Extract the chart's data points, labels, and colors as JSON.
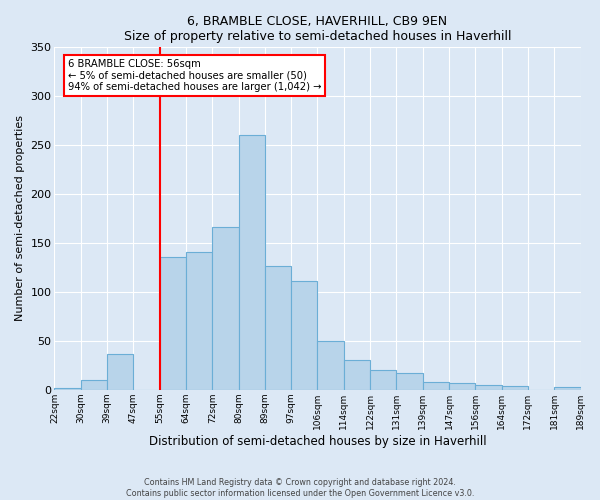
{
  "title": "6, BRAMBLE CLOSE, HAVERHILL, CB9 9EN",
  "subtitle": "Size of property relative to semi-detached houses in Haverhill",
  "xlabel": "Distribution of semi-detached houses by size in Haverhill",
  "ylabel": "Number of semi-detached properties",
  "footer_line1": "Contains HM Land Registry data © Crown copyright and database right 2024.",
  "footer_line2": "Contains public sector information licensed under the Open Government Licence v3.0.",
  "bin_labels": [
    "22sqm",
    "30sqm",
    "39sqm",
    "47sqm",
    "55sqm",
    "64sqm",
    "72sqm",
    "80sqm",
    "89sqm",
    "97sqm",
    "106sqm",
    "114sqm",
    "122sqm",
    "131sqm",
    "139sqm",
    "147sqm",
    "156sqm",
    "164sqm",
    "172sqm",
    "181sqm",
    "189sqm"
  ],
  "bar_values": [
    2,
    10,
    37,
    0,
    136,
    141,
    166,
    260,
    126,
    111,
    50,
    30,
    20,
    17,
    8,
    7,
    5,
    4,
    0,
    3
  ],
  "bar_color": "#b8d4ea",
  "bar_edge_color": "#6baed6",
  "vline_x_index": 4,
  "vline_color": "red",
  "annotation_title": "6 BRAMBLE CLOSE: 56sqm",
  "annotation_line1": "← 5% of semi-detached houses are smaller (50)",
  "annotation_line2": "94% of semi-detached houses are larger (1,042) →",
  "annotation_box_color": "white",
  "annotation_box_edge": "red",
  "ylim": [
    0,
    350
  ],
  "yticks": [
    0,
    50,
    100,
    150,
    200,
    250,
    300,
    350
  ],
  "bg_color": "#dce8f5"
}
